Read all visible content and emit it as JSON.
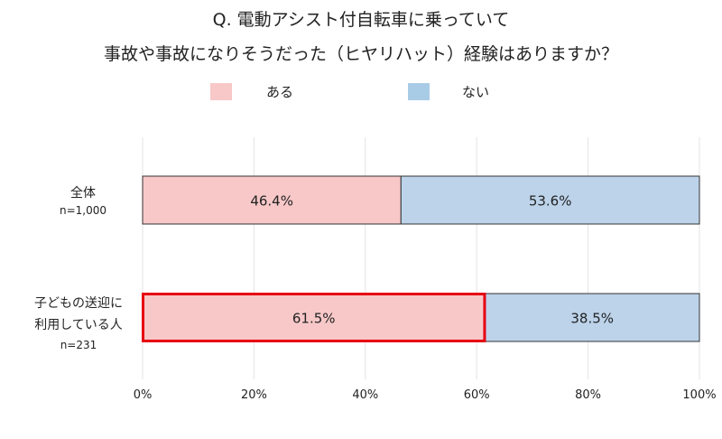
{
  "chart_data": {
    "type": "bar",
    "orientation": "horizontal",
    "stacked": true,
    "title": [
      "Q. 電動アシスト付自転車に乗っていて",
      "事故や事故になりそうだった（ヒヤリハット）経験はありますか？"
    ],
    "categories": [
      {
        "label_lines": [
          "全体"
        ],
        "n_label": "n=1,000"
      },
      {
        "label_lines": [
          "子どもの送迎に",
          "利用している人"
        ],
        "n_label": "n=231",
        "highlighted": true
      }
    ],
    "series": [
      {
        "name": "ある",
        "color": "#f8c8c8",
        "values": [
          46.4,
          61.5
        ],
        "labels": [
          "46.4%",
          "61.5%"
        ]
      },
      {
        "name": "ない",
        "color": "#bcd3ea",
        "values": [
          53.6,
          38.5
        ],
        "labels": [
          "53.6%",
          "38.5%"
        ]
      }
    ],
    "legend_colors": [
      "#f8c8c8",
      "#a9cce6"
    ],
    "xlim": [
      0,
      100
    ],
    "x_ticks": [
      "0%",
      "20%",
      "40%",
      "60%",
      "80%",
      "100%"
    ],
    "grid": true,
    "legend_position": "top",
    "highlight_color": "#e60012"
  }
}
